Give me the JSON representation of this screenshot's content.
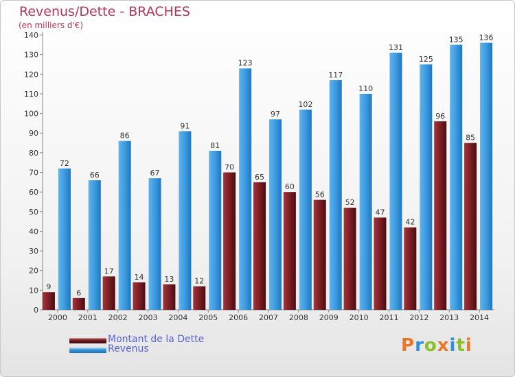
{
  "title": "Revenus/Dette - BRACHES",
  "subtitle": "(en milliers d'€)",
  "colors": {
    "dette": "#7a1f24",
    "revenus": "#3c9be0",
    "title": "#b3355a",
    "legend_text": "#5a63d6"
  },
  "legend": [
    {
      "label": "Montant de la Dette",
      "color": "#7a1f24"
    },
    {
      "label": "Revenus",
      "color": "#3c9be0"
    }
  ],
  "logo": {
    "letters": [
      "P",
      "r",
      "o",
      "x",
      "i",
      "t",
      "i"
    ],
    "colors": [
      "#e8772a",
      "#2f8fd8",
      "#8bbf2a",
      "#e8772a",
      "#2f8fd8",
      "#8bbf2a",
      "#e8772a"
    ]
  },
  "chart_data": {
    "type": "bar",
    "categories": [
      "2000",
      "2001",
      "2002",
      "2003",
      "2004",
      "2005",
      "2006",
      "2007",
      "2008",
      "2009",
      "2010",
      "2011",
      "2012",
      "2013",
      "2014"
    ],
    "series": [
      {
        "name": "Montant de la Dette",
        "values": [
          9,
          6,
          17,
          14,
          13,
          12,
          70,
          65,
          60,
          56,
          52,
          47,
          42,
          96,
          85
        ]
      },
      {
        "name": "Revenus",
        "values": [
          72,
          66,
          86,
          67,
          91,
          81,
          123,
          97,
          102,
          117,
          110,
          131,
          125,
          135,
          136
        ]
      }
    ],
    "ylim": [
      0,
      140
    ],
    "yticks": [
      0,
      10,
      20,
      30,
      40,
      50,
      60,
      70,
      80,
      90,
      100,
      110,
      120,
      130,
      140
    ],
    "grid": false,
    "legend_position": "bottom-left"
  }
}
